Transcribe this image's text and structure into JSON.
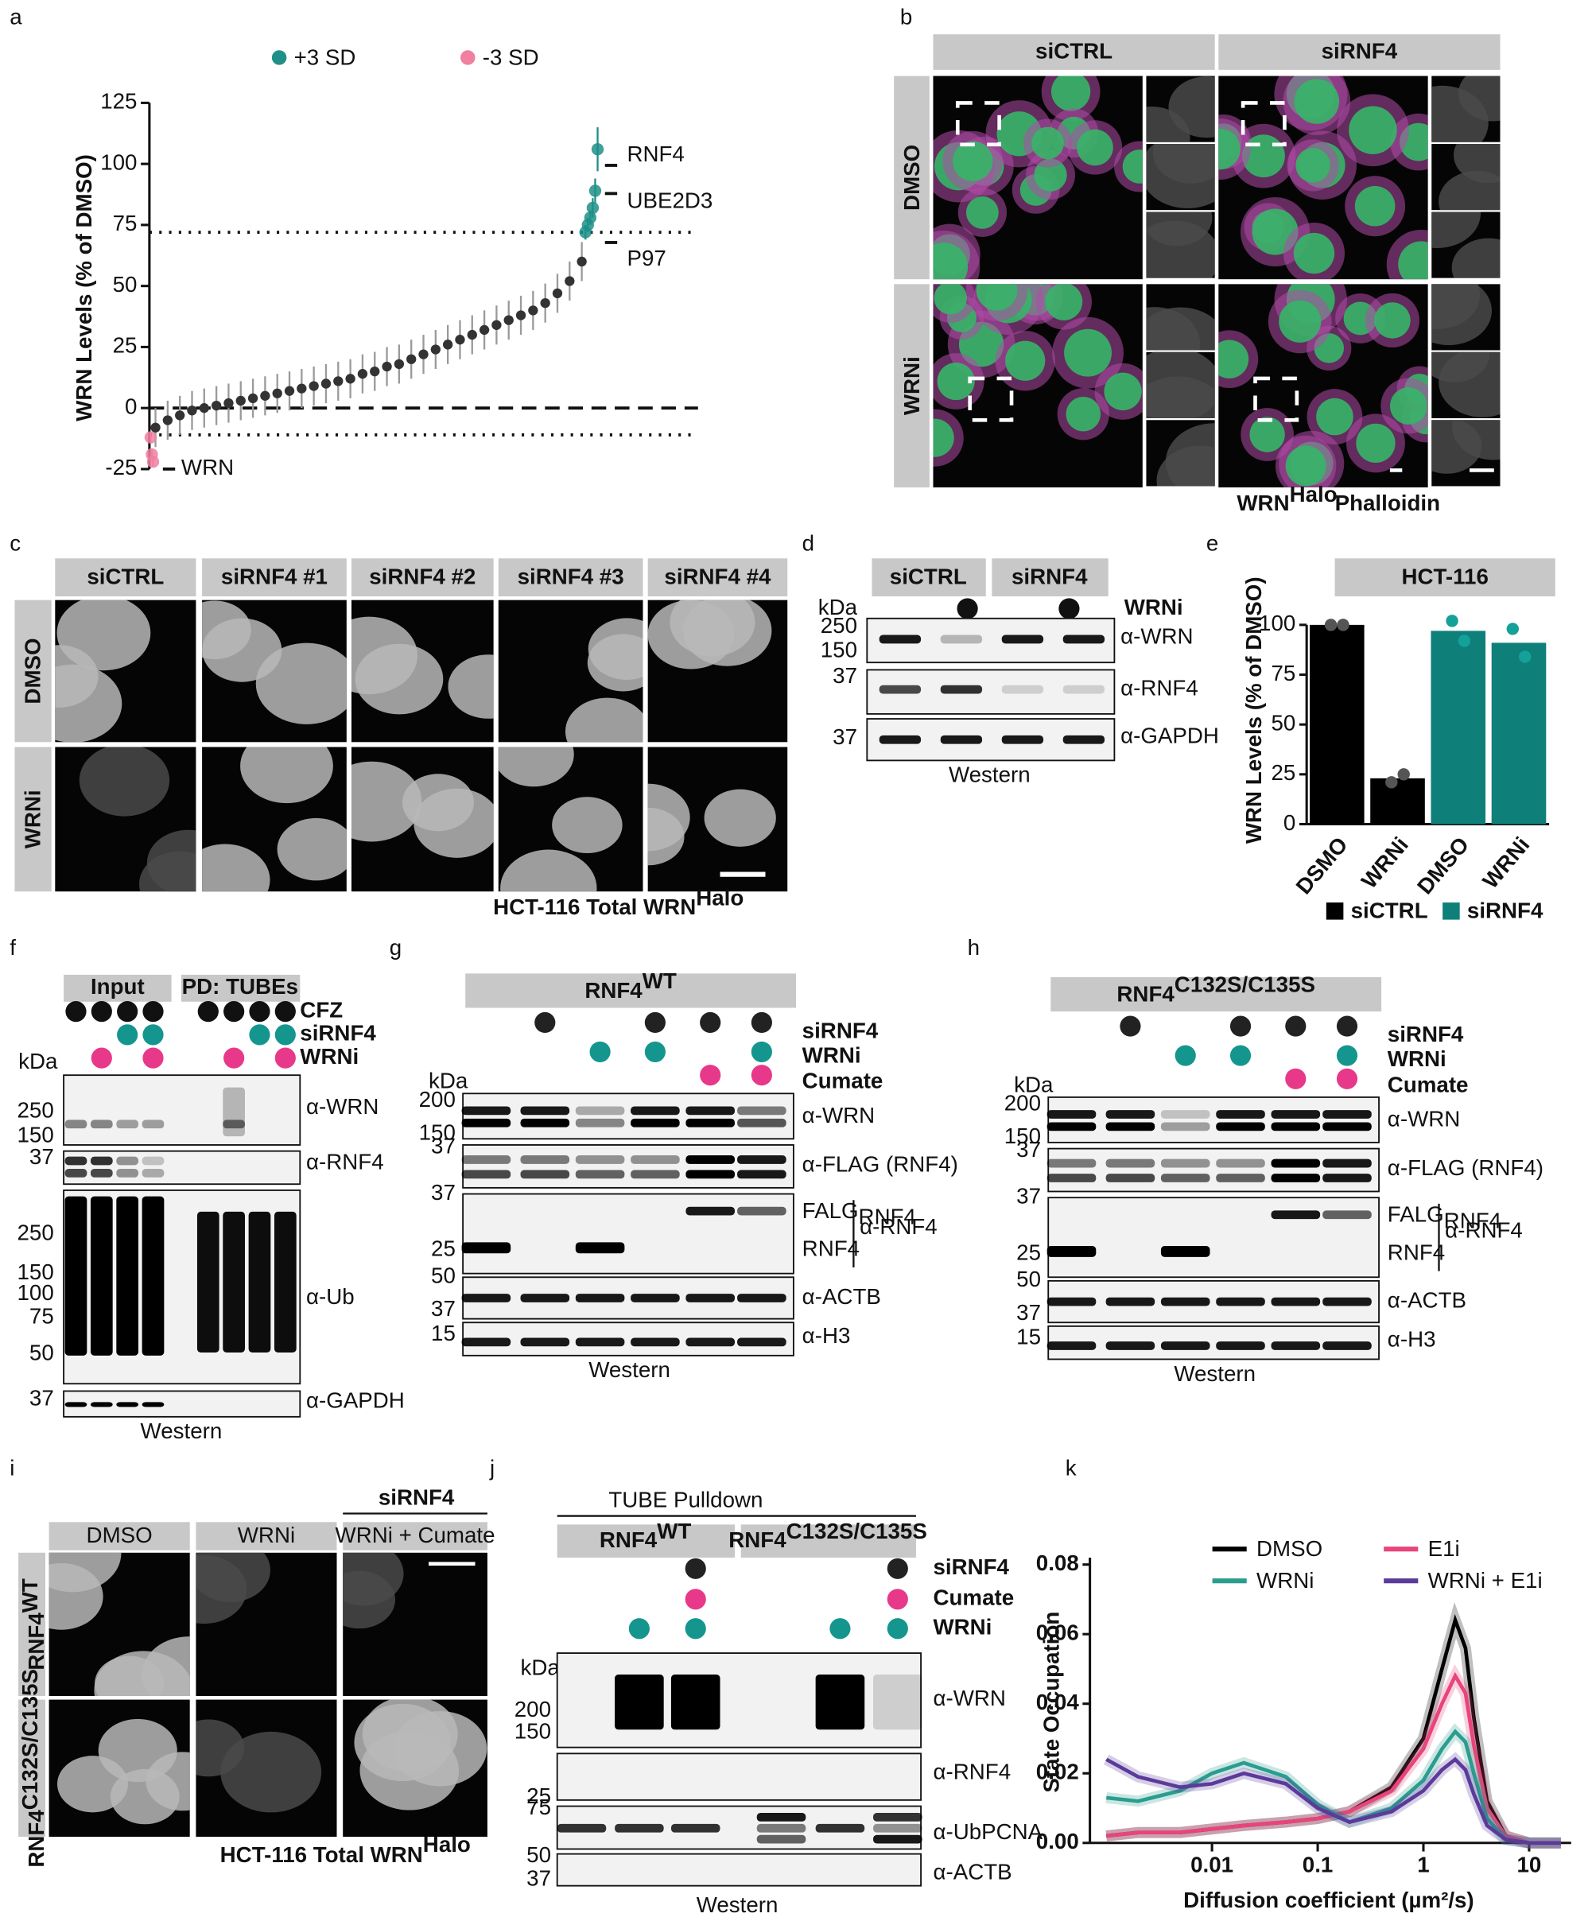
{
  "panel_labels": [
    "a",
    "b",
    "c",
    "d",
    "e",
    "f",
    "g",
    "h",
    "i",
    "j",
    "k"
  ],
  "chart_data": [
    {
      "type": "scatter",
      "ylabel": "WRN Levels (% of DMSO)",
      "xlim": [
        0,
        370
      ],
      "ylim": [
        -30,
        128
      ],
      "yticks": [
        -25,
        0,
        25,
        50,
        75,
        100,
        125
      ],
      "error_color": "#9a9a9a",
      "reference_lines": [
        {
          "value": 72,
          "style": "dotted"
        },
        {
          "value": 0,
          "style": "dashed"
        },
        {
          "value": -11,
          "style": "dotted"
        }
      ],
      "series": [
        {
          "color": "#333333",
          "x": [
            5,
            15,
            25,
            35,
            45,
            55,
            65,
            75,
            85,
            95,
            105,
            115,
            125,
            135,
            145,
            155,
            165,
            175,
            185,
            195,
            205,
            215,
            225,
            235,
            245,
            255,
            265,
            275,
            285,
            295,
            305,
            315,
            325,
            335,
            345,
            355
          ],
          "values": [
            -8,
            -5,
            -3,
            -1,
            0,
            1,
            2,
            3,
            4,
            5,
            6,
            7,
            8,
            9,
            10,
            11,
            12,
            14,
            15,
            17,
            18,
            20,
            22,
            24,
            26,
            28,
            30,
            32,
            34,
            36,
            38,
            40,
            43,
            47,
            52,
            60
          ],
          "errors": [
            8,
            8,
            8,
            8,
            8,
            8,
            8,
            8,
            8,
            8,
            8,
            8,
            8,
            8,
            8,
            8,
            8,
            8,
            8,
            8,
            8,
            8,
            8,
            8,
            8,
            8,
            8,
            8,
            8,
            8,
            8,
            8,
            8,
            8,
            8,
            8
          ]
        },
        {
          "name": "+3 SD",
          "color": "#1f8f88",
          "x": [
            358,
            360,
            362,
            364,
            366,
            368
          ],
          "values": [
            72,
            75,
            78,
            82,
            89,
            106
          ],
          "errors": [
            3,
            3,
            3,
            4,
            5,
            9
          ]
        },
        {
          "name": "-3 SD",
          "color": "#f07fa0",
          "x": [
            1,
            2,
            3
          ],
          "values": [
            -12,
            -19,
            -22
          ],
          "errors": [
            2,
            2,
            2
          ]
        }
      ],
      "annotations": [
        "RNF4",
        "UBE2D3",
        "P97",
        "WRN"
      ]
    },
    {
      "type": "bar",
      "title": "HCT-116",
      "ylabel": "WRN Levels (% of DMSO)",
      "categories": [
        "DSMO",
        "WRNi",
        "DMSO",
        "WRNi"
      ],
      "ylim": [
        0,
        110
      ],
      "yticks": [
        0,
        25,
        50,
        75,
        100
      ],
      "series": [
        {
          "name": "siCTRL",
          "color": "#000000",
          "point_color": "#555555",
          "values": [
            100,
            23,
            null,
            null
          ],
          "points": [
            [
              100,
              100
            ],
            [
              21,
              25
            ],
            null,
            null
          ]
        },
        {
          "name": "siRNF4",
          "color": "#0f7f7a",
          "point_color": "#14a19a",
          "values": [
            null,
            null,
            97,
            91
          ],
          "points": [
            null,
            null,
            [
              102,
              92
            ],
            [
              98,
              84
            ]
          ]
        }
      ]
    },
    {
      "type": "line",
      "xlabel": "Diffusion coefficient (µm²/s)",
      "ylabel": "State Occupation",
      "log_x": true,
      "xlim": [
        0.0007,
        25
      ],
      "ylim": [
        0,
        0.082
      ],
      "xticks": [
        0.01,
        0.1,
        1,
        10
      ],
      "yticks": [
        {
          "value": 0,
          "label": "0.00"
        },
        {
          "value": 0.02,
          "label": "0.02"
        },
        {
          "value": 0.04,
          "label": "0.04"
        },
        {
          "value": 0.06,
          "label": "0.06"
        },
        {
          "value": 0.08,
          "label": "0.08"
        }
      ],
      "x": [
        0.001,
        0.002,
        0.005,
        0.01,
        0.02,
        0.05,
        0.1,
        0.2,
        0.5,
        1,
        1.5,
        2,
        2.5,
        3,
        4,
        6,
        10,
        20
      ],
      "series": [
        {
          "name": "DMSO",
          "color": "#000000",
          "values": [
            0.002,
            0.003,
            0.003,
            0.004,
            0.005,
            0.006,
            0.007,
            0.009,
            0.016,
            0.03,
            0.05,
            0.064,
            0.056,
            0.036,
            0.012,
            0.002,
            0,
            0
          ]
        },
        {
          "name": "E1i",
          "color": "#e8457a",
          "values": [
            0.002,
            0.003,
            0.003,
            0.004,
            0.005,
            0.006,
            0.007,
            0.009,
            0.015,
            0.027,
            0.04,
            0.048,
            0.043,
            0.028,
            0.01,
            0.002,
            0,
            0
          ]
        },
        {
          "name": "WRNi",
          "color": "#2a9d8f",
          "values": [
            0.013,
            0.012,
            0.015,
            0.02,
            0.023,
            0.019,
            0.011,
            0.006,
            0.01,
            0.018,
            0.027,
            0.032,
            0.029,
            0.02,
            0.007,
            0.001,
            0,
            0
          ]
        },
        {
          "name": "WRNi + E1i",
          "color": "#5b3a9a",
          "values": [
            0.024,
            0.019,
            0.016,
            0.017,
            0.02,
            0.017,
            0.01,
            0.006,
            0.009,
            0.015,
            0.021,
            0.024,
            0.021,
            0.014,
            0.005,
            0.001,
            0,
            0
          ]
        }
      ]
    }
  ],
  "b": {
    "columns": [
      "siCTRL",
      "siRNF4"
    ],
    "rows": [
      "DMSO",
      "WRNi"
    ],
    "legend_wrn": "WRN",
    "legend_sup": "Halo",
    "legend_phalloidin": "Phalloidin"
  },
  "c": {
    "columns": [
      "siCTRL",
      "siRNF4 #1",
      "siRNF4 #2",
      "siRNF4 #3",
      "siRNF4 #4"
    ],
    "rows": [
      "DMSO",
      "WRNi"
    ],
    "caption": "HCT-116 Total WRN",
    "caption_sup": "Halo"
  },
  "d": {
    "columns": [
      "siCTRL",
      "siRNF4"
    ],
    "treatment": "WRNi",
    "kda": "kDa",
    "markers": [
      250,
      150,
      37,
      37
    ],
    "antibodies": [
      "α-WRN",
      "α-RNF4",
      "α-GAPDH"
    ],
    "footer": "Western"
  },
  "f": {
    "groups": [
      "Input",
      "PD: TUBEs"
    ],
    "conditions": [
      "CFZ",
      "siRNF4",
      "WRNi"
    ],
    "kda": "kDa",
    "markers": [
      250,
      150,
      37,
      250,
      150,
      100,
      75,
      50,
      37
    ],
    "antibodies": [
      "α-WRN",
      "α-RNF4",
      "α-Ub",
      "α-GAPDH"
    ],
    "footer": "Western"
  },
  "g": {
    "title": "RNF4",
    "title_sup": "WT",
    "conditions": [
      "siRNF4",
      "WRNi",
      "Cumate"
    ],
    "kda": "kDa",
    "markers": [
      200,
      150,
      37,
      37,
      25,
      50,
      37,
      15
    ],
    "antibodies": [
      "α-WRN",
      "α-FLAG (RNF4)",
      "α-RNF4",
      "α-ACTB",
      "α-H3"
    ],
    "band_sup": "FALG",
    "band_labels": [
      "RNF4",
      "RNF4"
    ],
    "footer": "Western"
  },
  "h": {
    "title": "RNF4",
    "title_sup": "C132S/C135S",
    "conditions": [
      "siRNF4",
      "WRNi",
      "Cumate"
    ],
    "kda": "kDa",
    "markers": [
      200,
      150,
      37,
      37,
      25,
      50,
      37,
      15
    ],
    "antibodies": [
      "α-WRN",
      "α-FLAG (RNF4)",
      "α-RNF4",
      "α-ACTB",
      "α-H3"
    ],
    "band_sup": "FALG",
    "band_labels": [
      "RNF4",
      "RNF4"
    ],
    "footer": "Western"
  },
  "i": {
    "header": "siRNF4",
    "columns": [
      "DMSO",
      "WRNi",
      "WRNi + Cumate"
    ],
    "rows": [
      "RNF4",
      "RNF4"
    ],
    "row_sups": [
      "WT",
      "C132S/C135S"
    ],
    "caption": "HCT-116 Total WRN",
    "caption_sup": "Halo"
  },
  "j": {
    "title": "TUBE Pulldown",
    "groups": [
      "RNF4",
      "RNF4"
    ],
    "group_sups": [
      "WT",
      "C132S/C135S"
    ],
    "conditions": [
      "siRNF4",
      "Cumate",
      "WRNi"
    ],
    "kda": "kDa",
    "markers": [
      200,
      150,
      25,
      75,
      50,
      37
    ],
    "antibodies": [
      "α-WRN",
      "α-RNF4",
      "α-UbPCNA",
      "α-ACTB"
    ],
    "footer": "Western"
  }
}
